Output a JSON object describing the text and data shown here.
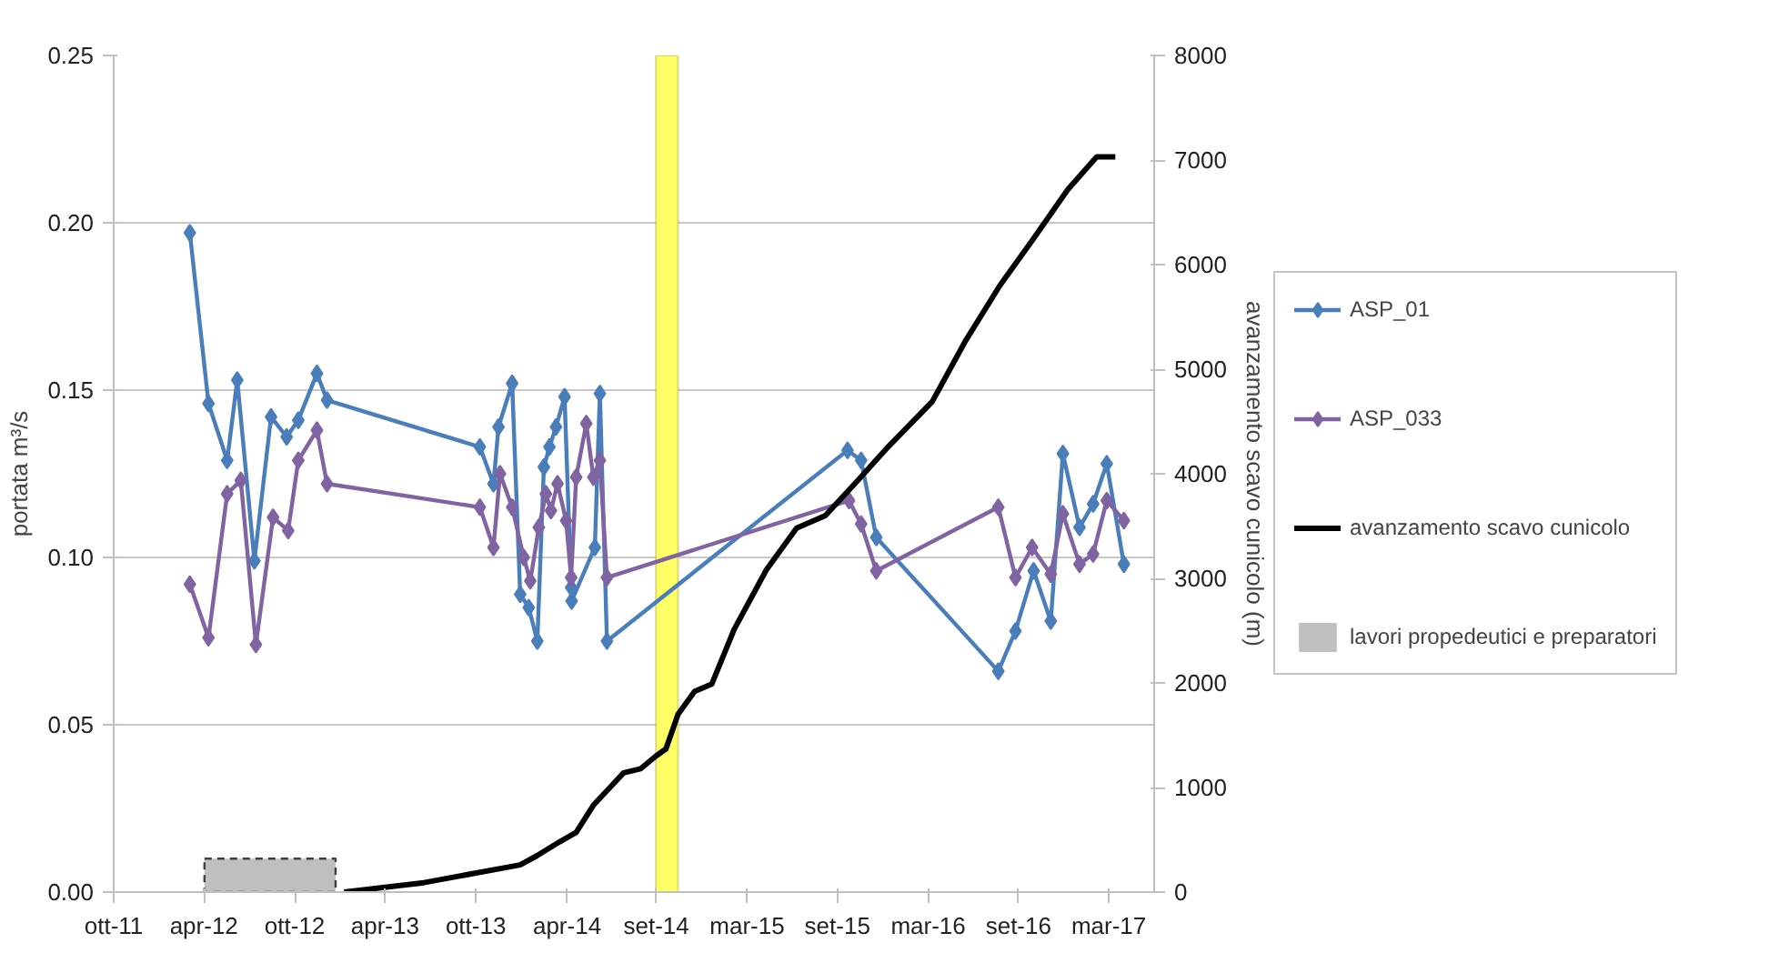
{
  "chart_data": {
    "type": "line",
    "ylabel": "portata m³/s",
    "y2label": "avanzamento scavo cunicolo (m)",
    "xlim": [
      "2011-10-15",
      "2017-06-08"
    ],
    "xticks": [
      {
        "value": "2011-10-15",
        "label": "ott-11"
      },
      {
        "value": "2012-04-11",
        "label": "apr-12"
      },
      {
        "value": "2012-10-08",
        "label": "ott-12"
      },
      {
        "value": "2013-04-05",
        "label": "apr-13"
      },
      {
        "value": "2013-10-02",
        "label": "ott-13"
      },
      {
        "value": "2014-04-01",
        "label": "apr-14"
      },
      {
        "value": "2014-09-25",
        "label": "set-14"
      },
      {
        "value": "2015-03-24",
        "label": "mar-15"
      },
      {
        "value": "2015-09-19",
        "label": "set-15"
      },
      {
        "value": "2016-03-17",
        "label": "mar-16"
      },
      {
        "value": "2016-09-12",
        "label": "set-16"
      },
      {
        "value": "2017-03-10",
        "label": "mar-17"
      }
    ],
    "ylim": [
      0,
      0.25
    ],
    "yticks": [
      {
        "value": 0,
        "label": "0.00"
      },
      {
        "value": 0.05,
        "label": "0.05"
      },
      {
        "value": 0.1,
        "label": "0.10"
      },
      {
        "value": 0.15,
        "label": "0.15"
      },
      {
        "value": 0.2,
        "label": "0.20"
      },
      {
        "value": 0.25,
        "label": "0.25"
      }
    ],
    "y2lim": [
      0,
      8000
    ],
    "y2ticks": [
      0,
      1000,
      2000,
      3000,
      4000,
      5000,
      6000,
      7000,
      8000
    ],
    "grid": "y",
    "legend": "right",
    "marker": "diamond",
    "line_style": "solid",
    "bands": [
      {
        "axis": "x",
        "from": "2014-09-24",
        "to": "2014-11-07",
        "color": "#ffff66"
      }
    ],
    "series": [
      {
        "name": "ASP_01",
        "color": "#4a7ebb",
        "x": [
          "2012-03-14",
          "2012-04-20",
          "2012-05-27",
          "2012-06-16",
          "2012-07-20",
          "2012-08-22",
          "2012-09-22",
          "2012-10-15",
          "2012-11-21",
          "2012-12-11",
          "2013-10-10",
          "2013-11-06",
          "2013-11-16",
          "2013-12-13",
          "2013-12-29",
          "2014-01-15",
          "2014-02-01",
          "2014-02-14",
          "2014-02-25",
          "2014-03-10",
          "2014-03-27",
          "2014-04-09",
          "2014-04-10",
          "2014-05-26",
          "2014-06-05",
          "2014-06-19",
          "2015-10-09",
          "2015-11-05",
          "2015-12-05",
          "2016-08-03",
          "2016-09-06",
          "2016-10-12",
          "2016-11-15",
          "2016-12-09",
          "2017-01-11",
          "2017-02-07",
          "2017-03-06",
          "2017-04-09"
        ],
        "values": [
          0.197,
          0.146,
          0.129,
          0.153,
          0.099,
          0.142,
          0.136,
          0.141,
          0.155,
          0.147,
          0.133,
          0.122,
          0.139,
          0.152,
          0.089,
          0.085,
          0.075,
          0.127,
          0.133,
          0.139,
          0.148,
          0.091,
          0.087,
          0.103,
          0.149,
          0.075,
          0.132,
          0.129,
          0.106,
          0.066,
          0.078,
          0.096,
          0.081,
          0.131,
          0.109,
          0.116,
          0.128,
          0.098
        ]
      },
      {
        "name": "ASP_033",
        "color": "#8064a2",
        "x": [
          "2012-03-14",
          "2012-04-20",
          "2012-05-27",
          "2012-06-23",
          "2012-07-23",
          "2012-08-26",
          "2012-09-25",
          "2012-10-15",
          "2012-11-21",
          "2012-12-11",
          "2013-10-10",
          "2013-11-06",
          "2013-11-19",
          "2013-12-13",
          "2014-01-05",
          "2014-01-18",
          "2014-02-04",
          "2014-02-18",
          "2014-02-28",
          "2014-03-13",
          "2014-03-30",
          "2014-04-09",
          "2014-04-19",
          "2014-05-09",
          "2014-05-23",
          "2014-06-05",
          "2014-06-19",
          "2015-10-12",
          "2015-11-05",
          "2015-12-05",
          "2016-08-03",
          "2016-09-06",
          "2016-10-09",
          "2016-11-15",
          "2016-12-09",
          "2017-01-11",
          "2017-02-07",
          "2017-03-06",
          "2017-04-09"
        ],
        "values": [
          0.092,
          0.076,
          0.119,
          0.123,
          0.074,
          0.112,
          0.108,
          0.129,
          0.138,
          0.122,
          0.115,
          0.103,
          0.125,
          0.115,
          0.1,
          0.093,
          0.109,
          0.119,
          0.114,
          0.122,
          0.111,
          0.094,
          0.124,
          0.14,
          0.124,
          0.129,
          0.094,
          0.117,
          0.11,
          0.096,
          0.115,
          0.094,
          0.103,
          0.095,
          0.113,
          0.098,
          0.101,
          0.117,
          0.111
        ]
      },
      {
        "name": "avanzamento scavo cunicolo",
        "color": "#000000",
        "axis": "y2",
        "marker": "none",
        "x": [
          "2013-01-14",
          "2013-06-21",
          "2013-12-29",
          "2014-02-01",
          "2014-03-17",
          "2014-04-19",
          "2014-05-23",
          "2014-06-25",
          "2014-07-22",
          "2014-08-25",
          "2014-09-24",
          "2014-10-14",
          "2014-11-07",
          "2014-12-10",
          "2015-01-13",
          "2015-02-26",
          "2015-05-01",
          "2015-06-30",
          "2015-08-26",
          "2015-11-01",
          "2015-12-25",
          "2016-03-25",
          "2016-05-31",
          "2016-08-06",
          "2016-10-12",
          "2016-12-19",
          "2017-02-14",
          "2017-03-23"
        ],
        "values": [
          0,
          90,
          260,
          350,
          480,
          570,
          830,
          1000,
          1140,
          1180,
          1300,
          1370,
          1700,
          1920,
          1990,
          2510,
          3080,
          3480,
          3600,
          3950,
          4240,
          4690,
          5280,
          5800,
          6250,
          6720,
          7030,
          7030
        ]
      },
      {
        "name": "lavori propedeutici e preparatori",
        "type": "area",
        "color": "#bfbfbf",
        "line_style": "dashed",
        "marker": "none",
        "x": [
          "2012-04-12",
          "2012-12-28"
        ],
        "values": [
          0.01,
          0.01
        ]
      }
    ]
  }
}
